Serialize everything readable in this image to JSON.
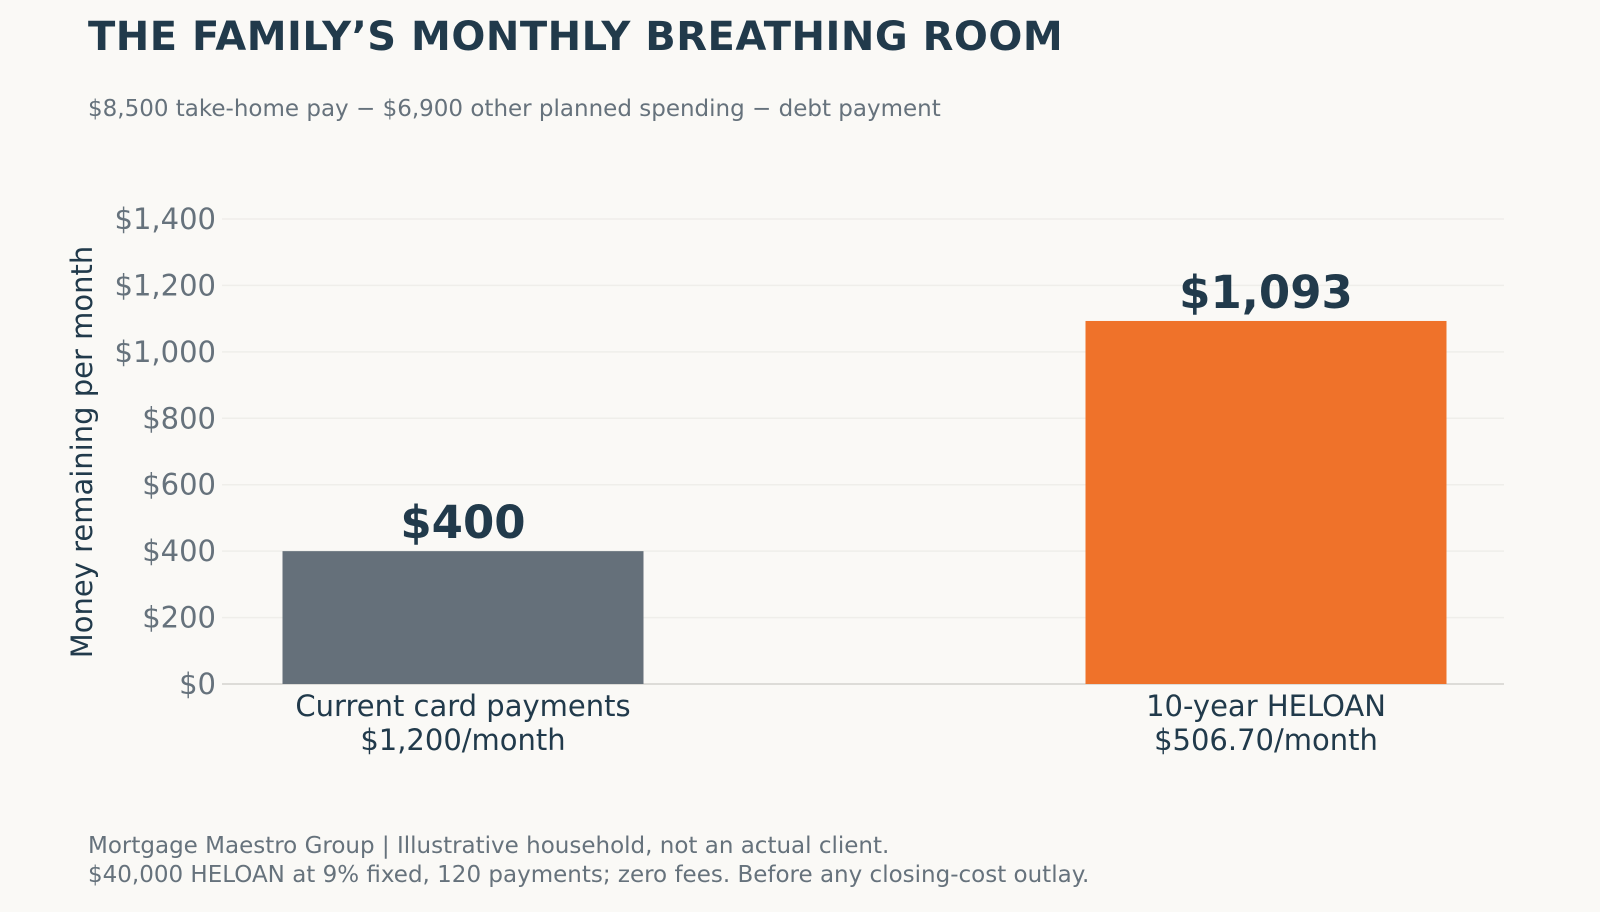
{
  "chart_data": {
    "type": "bar",
    "title": "THE FAMILY’S MONTHLY BREATHING ROOM",
    "subtitle": "$8,500 take-home pay − $6,900 other planned spending − debt payment",
    "xlabel": "",
    "ylabel": "Money remaining per month",
    "ylim": [
      0,
      1400
    ],
    "yticks": [
      0,
      200,
      400,
      600,
      800,
      1000,
      1200,
      1400
    ],
    "ytick_labels": [
      "$0",
      "$200",
      "$400",
      "$600",
      "$800",
      "$1,000",
      "$1,200",
      "$1,400"
    ],
    "grid": "horizontal",
    "categories": [
      [
        "Current card payments",
        "$1,200/month"
      ],
      [
        "10-year HELOAN",
        "$506.70/month"
      ]
    ],
    "values": [
      400,
      1093
    ],
    "value_labels": [
      "$400",
      "$1,093"
    ],
    "colors": [
      "#65707a",
      "#ef722a"
    ]
  },
  "footer": {
    "line1": "Mortgage Maestro Group | Illustrative household, not an actual client.",
    "line2": "$40,000 HELOAN at 9% fixed, 120 payments; zero fees. Before any closing-cost outlay."
  },
  "colors": {
    "title": "#213a4b",
    "muted": "#66727c",
    "grid": "#efeeea",
    "axis": "#d3d2cd"
  }
}
